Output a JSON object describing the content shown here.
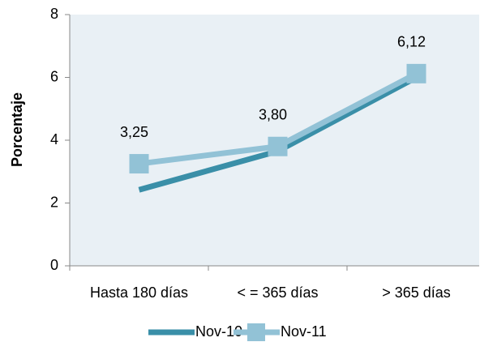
{
  "chart_data": {
    "type": "line",
    "y_label": "Porcentaje",
    "categories": [
      "Hasta 180 días",
      "< = 365 días",
      "> 365 días"
    ],
    "series": [
      {
        "name": "Nov-10",
        "color": "#3a8fa8",
        "values": [
          2.42,
          3.65,
          6.0
        ]
      },
      {
        "name": "Nov-11",
        "color": "#92c2d6",
        "marker": "square",
        "values": [
          3.25,
          3.8,
          6.12
        ],
        "value_labels": [
          "3,25",
          "3,80",
          "6,12"
        ]
      }
    ],
    "ylim": [
      0,
      8
    ],
    "yticks": [
      0,
      2,
      4,
      6,
      8
    ],
    "legend": "bottom"
  }
}
